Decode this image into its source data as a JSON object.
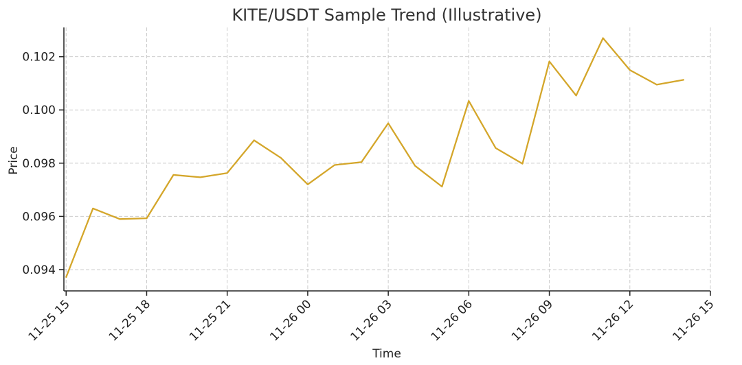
{
  "chart_data": {
    "type": "line",
    "title": "KITE/USDT Sample Trend (Illustrative)",
    "xlabel": "Time",
    "ylabel": "Price",
    "grid": true,
    "x_ticks": [
      "11-25 15",
      "11-25 18",
      "11-25 21",
      "11-26 00",
      "11-26 03",
      "11-26 06",
      "11-26 09",
      "11-26 12",
      "11-26 15"
    ],
    "y_ticks": [
      "0.094",
      "0.096",
      "0.098",
      "0.100",
      "0.102"
    ],
    "xlim": [
      "2025-11-25 14:55",
      "2025-11-26 15:00"
    ],
    "ylim": [
      0.0932,
      0.1031
    ],
    "series": [
      {
        "color": "#D4A62A",
        "x": [
          "2025-11-25 15:00",
          "2025-11-25 16:00",
          "2025-11-25 17:00",
          "2025-11-25 18:00",
          "2025-11-25 19:00",
          "2025-11-25 20:00",
          "2025-11-25 21:00",
          "2025-11-25 22:00",
          "2025-11-25 23:00",
          "2025-11-26 00:00",
          "2025-11-26 01:00",
          "2025-11-26 02:00",
          "2025-11-26 03:00",
          "2025-11-26 04:00",
          "2025-11-26 05:00",
          "2025-11-26 06:00",
          "2025-11-26 07:00",
          "2025-11-26 08:00",
          "2025-11-26 09:00",
          "2025-11-26 10:00",
          "2025-11-26 11:00",
          "2025-11-26 12:00",
          "2025-11-26 13:00",
          "2025-11-26 14:00"
        ],
        "values": [
          0.09372,
          0.0963,
          0.0959,
          0.09593,
          0.09756,
          0.09747,
          0.09763,
          0.09886,
          0.0982,
          0.0972,
          0.09793,
          0.09804,
          0.0995,
          0.0979,
          0.09712,
          0.10034,
          0.09857,
          0.09798,
          0.10182,
          0.10054,
          0.1027,
          0.1015,
          0.10095,
          0.10113
        ]
      }
    ]
  }
}
